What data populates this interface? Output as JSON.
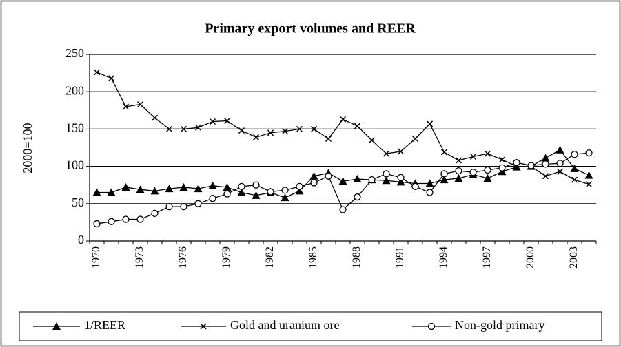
{
  "chart_data": {
    "type": "line",
    "title": "Primary export volumes and REER",
    "y_label": "2000=100",
    "categories": [
      "1970",
      null,
      null,
      "1973",
      null,
      null,
      "1976",
      null,
      null,
      "1979",
      null,
      null,
      "1982",
      null,
      null,
      "1985",
      null,
      null,
      "1988",
      null,
      null,
      "1991",
      null,
      null,
      "1994",
      null,
      null,
      "1997",
      null,
      null,
      "2000",
      null,
      null,
      "2003",
      null
    ],
    "series": [
      {
        "name": "1/REER",
        "color": "#000000",
        "marker": "triangle",
        "values": [
          65,
          65,
          72,
          69,
          67,
          70,
          72,
          70,
          74,
          72,
          65,
          61,
          65,
          58,
          67,
          87,
          91,
          80,
          83,
          82,
          81,
          79,
          77,
          77,
          82,
          84,
          89,
          84,
          93,
          99,
          100,
          111,
          122,
          97,
          88
        ]
      },
      {
        "name": "Gold and uranium ore",
        "color": "#000000",
        "marker": "cross",
        "values": [
          226,
          218,
          180,
          183,
          165,
          150,
          150,
          152,
          160,
          161,
          148,
          139,
          145,
          147,
          150,
          150,
          137,
          163,
          154,
          135,
          117,
          120,
          137,
          157,
          119,
          108,
          113,
          117,
          109,
          100,
          100,
          87,
          93,
          82,
          76
        ]
      },
      {
        "name": "Non-gold primary",
        "color": "#000000",
        "marker": "circle",
        "values": [
          23,
          26,
          29,
          29,
          37,
          46,
          46,
          50,
          57,
          63,
          73,
          75,
          66,
          68,
          73,
          78,
          87,
          42,
          59,
          82,
          90,
          85,
          73,
          65,
          90,
          94,
          92,
          95,
          98,
          105,
          101,
          103,
          104,
          116,
          118
        ]
      }
    ],
    "ylim": [
      0,
      250
    ],
    "yticks": [
      0,
      50,
      100,
      150,
      200,
      250
    ],
    "grid": true,
    "legend": "bottom"
  }
}
